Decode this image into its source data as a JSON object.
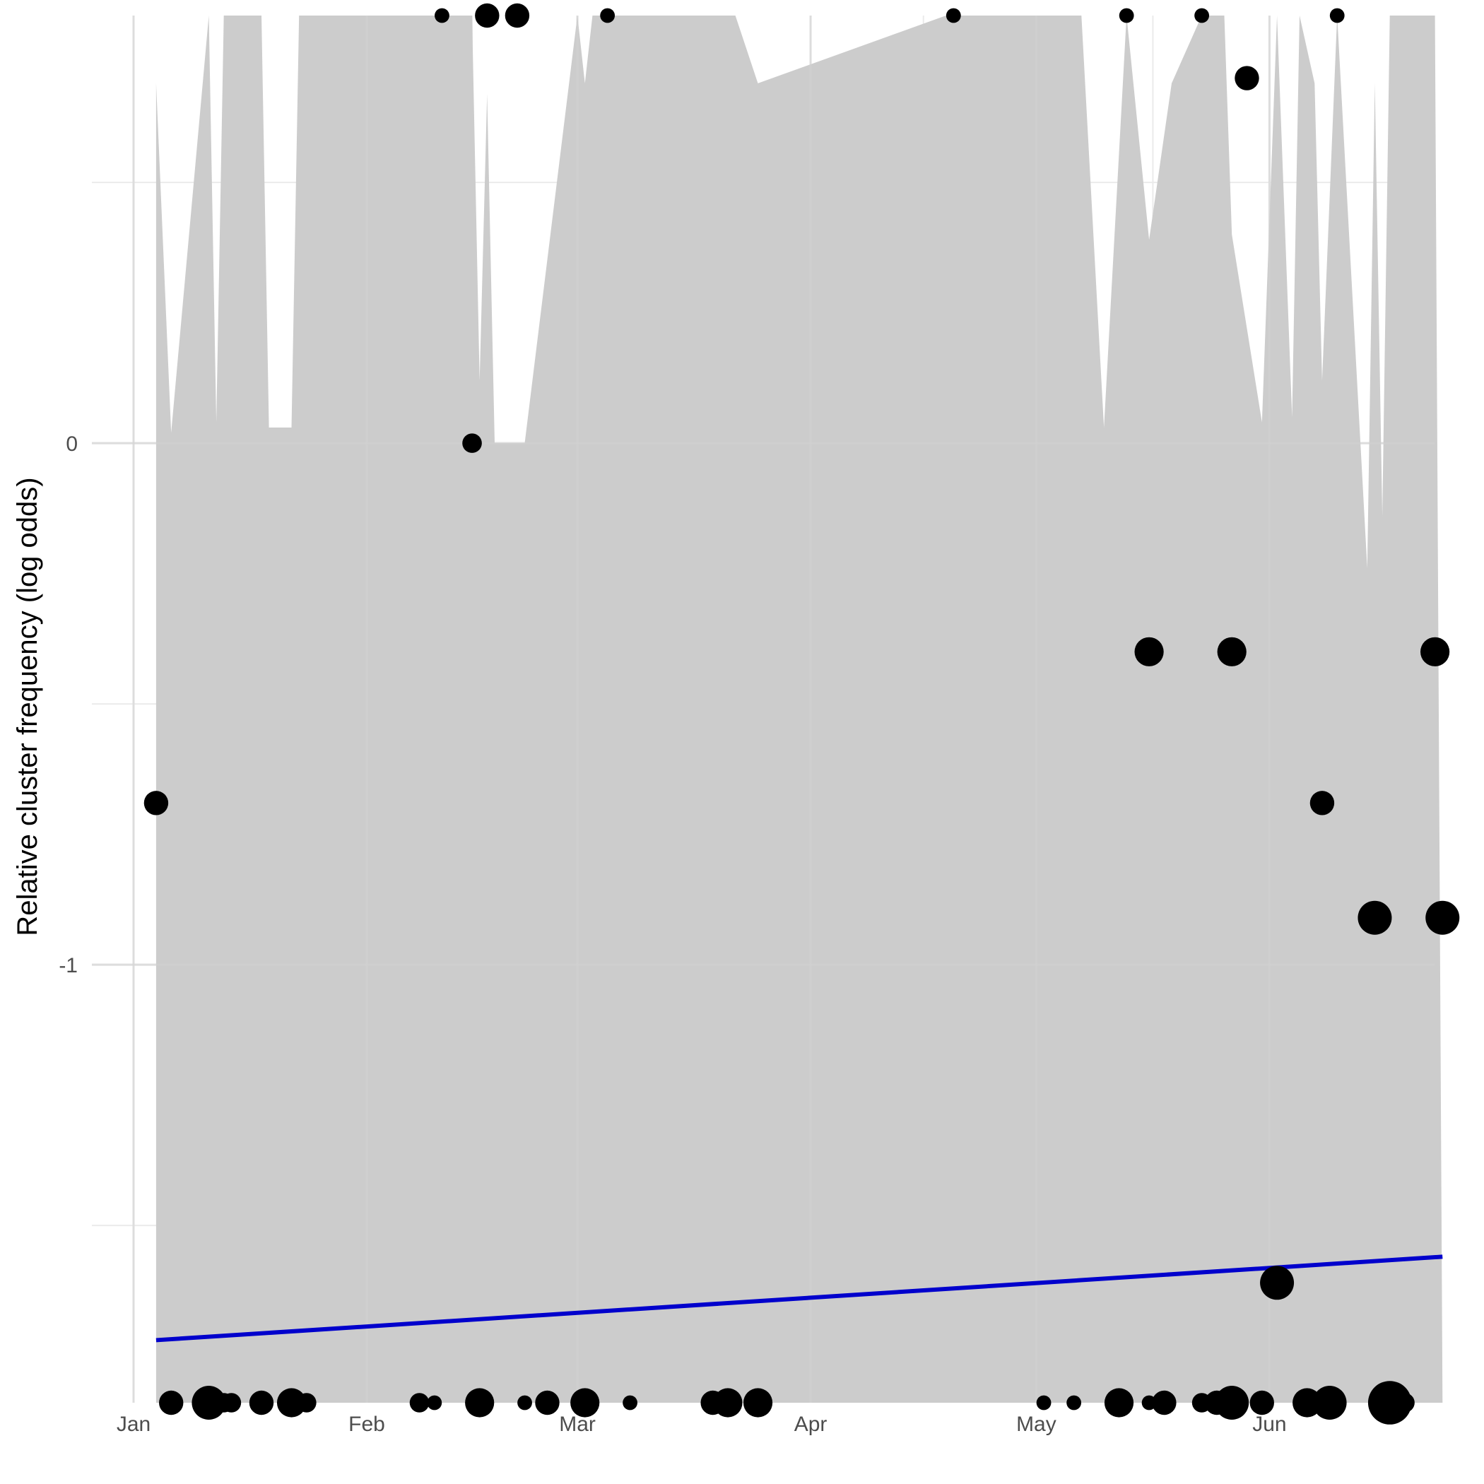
{
  "chart_data": {
    "type": "scatter",
    "title": "",
    "xlabel": "",
    "ylabel": "Relative cluster frequency (log odds)",
    "x_ticks": [
      {
        "label": "Jan",
        "date": "2021-01-01"
      },
      {
        "label": "Feb",
        "date": "2021-02-01"
      },
      {
        "label": "Mar",
        "date": "2021-03-01"
      },
      {
        "label": "Apr",
        "date": "2021-04-01"
      },
      {
        "label": "May",
        "date": "2021-05-01"
      },
      {
        "label": "Jun",
        "date": "2021-06-01"
      }
    ],
    "x_range": [
      "2021-01-01",
      "2021-06-25"
    ],
    "y_ticks": [
      {
        "label": "0",
        "value": 0
      },
      {
        "label": "-1",
        "value": -1
      }
    ],
    "y_range": [
      -1.84,
      0.82
    ],
    "grid": true,
    "legend": "none",
    "colors": {
      "points": "#000000",
      "trend_line": "#0000cc",
      "confidence_band": "#cccccc",
      "grid_major": "#d2d2d2",
      "grid_minor": "#ebebeb"
    },
    "trend_line": {
      "x": [
        "2021-01-04",
        "2021-06-24"
      ],
      "y": [
        -1.72,
        -1.56
      ]
    },
    "confidence_band": {
      "x": [
        "2021-01-04",
        "2021-01-06",
        "2021-01-11",
        "2021-01-12",
        "2021-01-13",
        "2021-01-15",
        "2021-01-18",
        "2021-01-19",
        "2021-01-22",
        "2021-01-23",
        "2021-01-26",
        "2021-02-12",
        "2021-02-15",
        "2021-02-16",
        "2021-02-17",
        "2021-02-18",
        "2021-02-22",
        "2021-03-01",
        "2021-03-02",
        "2021-03-03",
        "2021-03-22",
        "2021-03-25",
        "2021-04-19",
        "2021-04-23",
        "2021-05-01",
        "2021-05-07",
        "2021-05-10",
        "2021-05-13",
        "2021-05-16",
        "2021-05-19",
        "2021-05-23",
        "2021-05-26",
        "2021-05-27",
        "2021-05-31",
        "2021-06-02",
        "2021-06-04",
        "2021-06-05",
        "2021-06-07",
        "2021-06-08",
        "2021-06-10",
        "2021-06-14",
        "2021-06-15",
        "2021-06-16",
        "2021-06-17",
        "2021-06-18",
        "2021-06-21",
        "2021-06-23",
        "2021-06-24"
      ],
      "upper": [
        0.69,
        0.02,
        0.82,
        0.04,
        0.82,
        0.82,
        0.82,
        0.03,
        0.03,
        0.82,
        0.82,
        0.82,
        0.82,
        0.12,
        0.67,
        0.0,
        0.0,
        0.82,
        0.69,
        0.82,
        0.82,
        0.69,
        0.82,
        0.82,
        0.82,
        0.82,
        0.03,
        0.82,
        0.39,
        0.69,
        0.82,
        0.82,
        0.4,
        0.04,
        0.82,
        0.05,
        0.82,
        0.69,
        0.12,
        0.82,
        -0.24,
        0.69,
        -0.14,
        0.82,
        0.82,
        0.82,
        0.82,
        -1.84
      ],
      "lower": -1.84
    },
    "points": [
      {
        "date": "2021-01-04",
        "y": -0.69,
        "size": 3
      },
      {
        "date": "2021-01-06",
        "y": -1.84,
        "size": 3
      },
      {
        "date": "2021-01-11",
        "y": -1.84,
        "size": 5
      },
      {
        "date": "2021-01-13",
        "y": -1.84,
        "size": 2
      },
      {
        "date": "2021-01-14",
        "y": -1.84,
        "size": 2
      },
      {
        "date": "2021-01-18",
        "y": -1.84,
        "size": 3
      },
      {
        "date": "2021-01-22",
        "y": -1.84,
        "size": 4
      },
      {
        "date": "2021-01-24",
        "y": -1.84,
        "size": 2
      },
      {
        "date": "2021-02-08",
        "y": -1.84,
        "size": 2
      },
      {
        "date": "2021-02-10",
        "y": -1.84,
        "size": 1
      },
      {
        "date": "2021-02-11",
        "y": 0.82,
        "size": 1
      },
      {
        "date": "2021-02-15",
        "y": 0.0,
        "size": 2
      },
      {
        "date": "2021-02-16",
        "y": -1.84,
        "size": 4
      },
      {
        "date": "2021-02-17",
        "y": 0.82,
        "size": 3
      },
      {
        "date": "2021-02-21",
        "y": 0.82,
        "size": 3
      },
      {
        "date": "2021-02-22",
        "y": -1.84,
        "size": 1
      },
      {
        "date": "2021-02-25",
        "y": -1.84,
        "size": 3
      },
      {
        "date": "2021-03-02",
        "y": -1.84,
        "size": 4
      },
      {
        "date": "2021-03-05",
        "y": 0.82,
        "size": 1
      },
      {
        "date": "2021-03-08",
        "y": -1.84,
        "size": 1
      },
      {
        "date": "2021-03-19",
        "y": -1.84,
        "size": 3
      },
      {
        "date": "2021-03-21",
        "y": -1.84,
        "size": 4
      },
      {
        "date": "2021-03-25",
        "y": -1.84,
        "size": 4
      },
      {
        "date": "2021-04-20",
        "y": 0.82,
        "size": 1
      },
      {
        "date": "2021-05-02",
        "y": -1.84,
        "size": 1
      },
      {
        "date": "2021-05-06",
        "y": -1.84,
        "size": 1
      },
      {
        "date": "2021-05-12",
        "y": -1.84,
        "size": 4
      },
      {
        "date": "2021-05-13",
        "y": 0.82,
        "size": 1
      },
      {
        "date": "2021-05-16",
        "y": -0.4,
        "size": 4
      },
      {
        "date": "2021-05-16",
        "y": -1.84,
        "size": 1
      },
      {
        "date": "2021-05-18",
        "y": -1.84,
        "size": 3
      },
      {
        "date": "2021-05-23",
        "y": 0.82,
        "size": 1
      },
      {
        "date": "2021-05-23",
        "y": -1.84,
        "size": 2
      },
      {
        "date": "2021-05-25",
        "y": -1.84,
        "size": 3
      },
      {
        "date": "2021-05-27",
        "y": -1.84,
        "size": 5
      },
      {
        "date": "2021-05-27",
        "y": -0.4,
        "size": 4
      },
      {
        "date": "2021-05-29",
        "y": 0.7,
        "size": 3
      },
      {
        "date": "2021-05-31",
        "y": -1.84,
        "size": 3
      },
      {
        "date": "2021-06-02",
        "y": -1.61,
        "size": 5
      },
      {
        "date": "2021-06-06",
        "y": -1.84,
        "size": 4
      },
      {
        "date": "2021-06-08",
        "y": -0.69,
        "size": 3
      },
      {
        "date": "2021-06-09",
        "y": -1.84,
        "size": 5
      },
      {
        "date": "2021-06-10",
        "y": 0.82,
        "size": 1
      },
      {
        "date": "2021-06-15",
        "y": -0.91,
        "size": 5
      },
      {
        "date": "2021-06-17",
        "y": -1.84,
        "size": 7
      },
      {
        "date": "2021-06-19",
        "y": -1.84,
        "size": 2
      },
      {
        "date": "2021-06-23",
        "y": -0.4,
        "size": 4
      },
      {
        "date": "2021-06-24",
        "y": -0.91,
        "size": 5
      }
    ]
  }
}
